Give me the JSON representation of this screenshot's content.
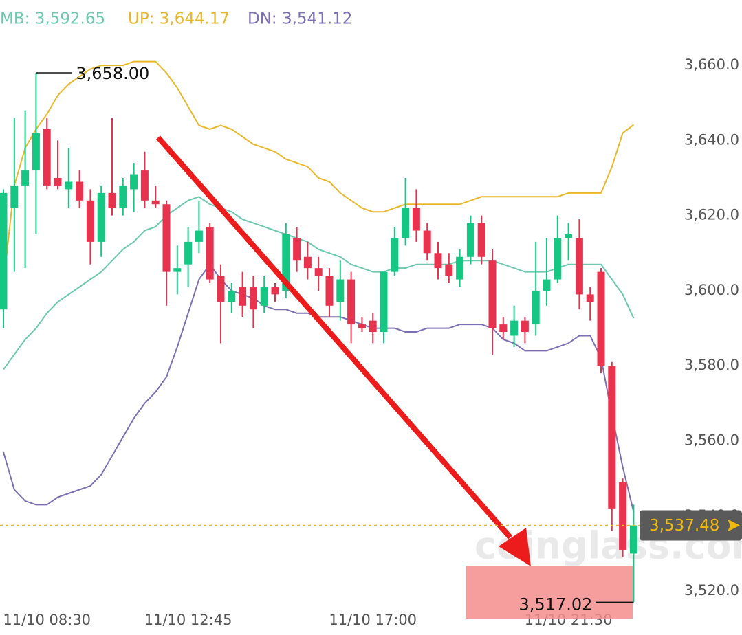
{
  "chart_data": {
    "type": "candlestick",
    "legend": [
      "MB: 3,592.65",
      "UP: 3,644.17",
      "DN: 3,541.12"
    ],
    "categories": [
      null,
      null,
      null,
      null,
      "11/10 08:30",
      null,
      null,
      null,
      null,
      null,
      null,
      null,
      null,
      null,
      null,
      null,
      null,
      "11/10 12:45",
      null,
      null,
      null,
      null,
      null,
      null,
      null,
      null,
      null,
      null,
      null,
      null,
      null,
      null,
      null,
      null,
      "11/10 17:00",
      null,
      null,
      null,
      null,
      null,
      null,
      null,
      null,
      null,
      null,
      null,
      null,
      null,
      null,
      null,
      null,
      null,
      "11/10 21:30",
      null,
      null,
      null,
      null,
      null,
      null
    ],
    "open": [
      3595,
      3622,
      3628,
      3632,
      3643,
      3630,
      3627,
      3629,
      3624,
      3613,
      3626,
      3622,
      3627,
      3632,
      3624,
      3623,
      3605,
      3607,
      3613,
      3617,
      3604,
      3597,
      3601,
      3601,
      3596,
      3601,
      3600,
      3614,
      3609,
      3606,
      3604,
      3597,
      3603,
      3591,
      3592,
      3589,
      3605,
      3614,
      3622,
      3616,
      3610,
      3607,
      3603,
      3609,
      3618,
      3608,
      3591,
      3588,
      3592,
      3591,
      3600,
      3603,
      3614,
      3614,
      3599,
      3605,
      3580,
      3549,
      3530
    ],
    "high": [
      3627,
      3646,
      3648,
      3658,
      3646,
      3640,
      3638,
      3632,
      3627,
      3628,
      3646,
      3630,
      3634,
      3637,
      3628,
      3624,
      3612,
      3617,
      3624,
      3618,
      3607,
      3602,
      3605,
      3604,
      3604,
      3602,
      3618,
      3617,
      3613,
      3609,
      3606,
      3608,
      3605,
      3593,
      3594,
      3605,
      3617,
      3630,
      3627,
      3618,
      3613,
      3610,
      3611,
      3620,
      3620,
      3611,
      3593,
      3596,
      3593,
      3613,
      3614,
      3620,
      3618,
      3619,
      3601,
      3606,
      3581,
      3550,
      3543
    ],
    "low": [
      3590,
      3605,
      3606,
      3615,
      3627,
      3627,
      3622,
      3622,
      3607,
      3609,
      3620,
      3620,
      3621,
      3622,
      3622,
      3596,
      3599,
      3601,
      3610,
      3602,
      3586,
      3594,
      3593,
      3590,
      3594,
      3597,
      3598,
      3605,
      3603,
      3600,
      3593,
      3592,
      3586,
      3589,
      3586,
      3586,
      3604,
      3612,
      3613,
      3608,
      3603,
      3602,
      3601,
      3607,
      3607,
      3583,
      3587,
      3585,
      3586,
      3588,
      3596,
      3602,
      3608,
      3595,
      3592,
      3578,
      3536,
      3529,
      3517.02
    ],
    "close": [
      3626,
      3628,
      3632,
      3642,
      3628,
      3628,
      3629,
      3624,
      3613,
      3626,
      3622,
      3628,
      3631,
      3624,
      3623,
      3605,
      3606,
      3613,
      3616,
      3603,
      3597,
      3600,
      3596,
      3595,
      3601,
      3599,
      3615,
      3608,
      3606,
      3604,
      3596,
      3603,
      3591,
      3590,
      3589,
      3605,
      3614,
      3622,
      3616,
      3610,
      3606,
      3604,
      3609,
      3618,
      3609,
      3590,
      3589,
      3592,
      3589,
      3600,
      3603,
      3614,
      3615,
      3599,
      3597,
      3580,
      3542,
      3531,
      3537.48
    ],
    "up_color": "#16c784",
    "down_color": "#e8334f",
    "series": [
      {
        "name": "MB",
        "color": "#6cc9ad",
        "values": [
          3579,
          3583,
          3587,
          3590,
          3594,
          3597,
          3599,
          3601,
          3603,
          3605,
          3608,
          3611,
          3613,
          3616,
          3617,
          3620,
          3622,
          3624,
          3625,
          3623,
          3622,
          3621,
          3619,
          3618,
          3617,
          3616,
          3615,
          3614,
          3613,
          3611,
          3610,
          3609,
          3607,
          3606,
          3605,
          3605,
          3606,
          3606,
          3607,
          3607,
          3607,
          3607,
          3608,
          3608,
          3608,
          3608,
          3607,
          3606,
          3605,
          3605,
          3605,
          3606,
          3607,
          3607,
          3607,
          3607,
          3603,
          3599,
          3592.65
        ]
      },
      {
        "name": "UP",
        "color": "#e9b82a",
        "values": [
          3602,
          3628,
          3638,
          3643,
          3647,
          3652,
          3655,
          3657,
          3659,
          3660,
          3660,
          3660,
          3661,
          3661,
          3661,
          3658,
          3654,
          3649,
          3644,
          3643,
          3644,
          3643,
          3641,
          3639,
          3638,
          3637,
          3635,
          3634,
          3633,
          3630,
          3629,
          3626,
          3624,
          3622,
          3621,
          3621,
          3622,
          3623,
          3623,
          3623,
          3623,
          3623,
          3623,
          3624,
          3625,
          3625,
          3625,
          3625,
          3625,
          3625,
          3625,
          3625,
          3626,
          3626,
          3626,
          3626,
          3633,
          3642,
          3644.17
        ]
      },
      {
        "name": "DN",
        "color": "#7d6fb3",
        "values": [
          3557,
          3547,
          3544,
          3543,
          3543,
          3545,
          3546,
          3547,
          3548,
          3551,
          3556,
          3561,
          3566,
          3570,
          3573,
          3577,
          3585,
          3594,
          3603,
          3607,
          3603,
          3600,
          3599,
          3598,
          3596,
          3595,
          3595,
          3594,
          3594,
          3593,
          3593,
          3593,
          3592,
          3591,
          3590,
          3590,
          3590,
          3589,
          3589,
          3590,
          3590,
          3590,
          3591,
          3591,
          3591,
          3590,
          3587,
          3586,
          3584,
          3584,
          3584,
          3585,
          3586,
          3588,
          3588,
          3582,
          3567,
          3553,
          3541.12
        ]
      }
    ],
    "ylim": [
      3508.3,
      3677.4
    ],
    "yticks": [
      {
        "value": 3520,
        "label": "3,520.0"
      },
      {
        "value": 3540,
        "label": "3,540.0"
      },
      {
        "value": 3560,
        "label": "3,560.0"
      },
      {
        "value": 3580,
        "label": "3,580.0"
      },
      {
        "value": 3600,
        "label": "3,600.0"
      },
      {
        "value": 3620,
        "label": "3,620.0"
      },
      {
        "value": 3640,
        "label": "3,640.0"
      },
      {
        "value": 3660,
        "label": "3,660.0"
      }
    ],
    "high_marker": {
      "value": 3658,
      "label": "3,658.00"
    },
    "low_marker": {
      "value": 3517.02,
      "label": "3,517.02"
    },
    "current_price": {
      "value": 3537.48,
      "label": "3,537.48"
    },
    "watermark": "coinglass.com"
  }
}
